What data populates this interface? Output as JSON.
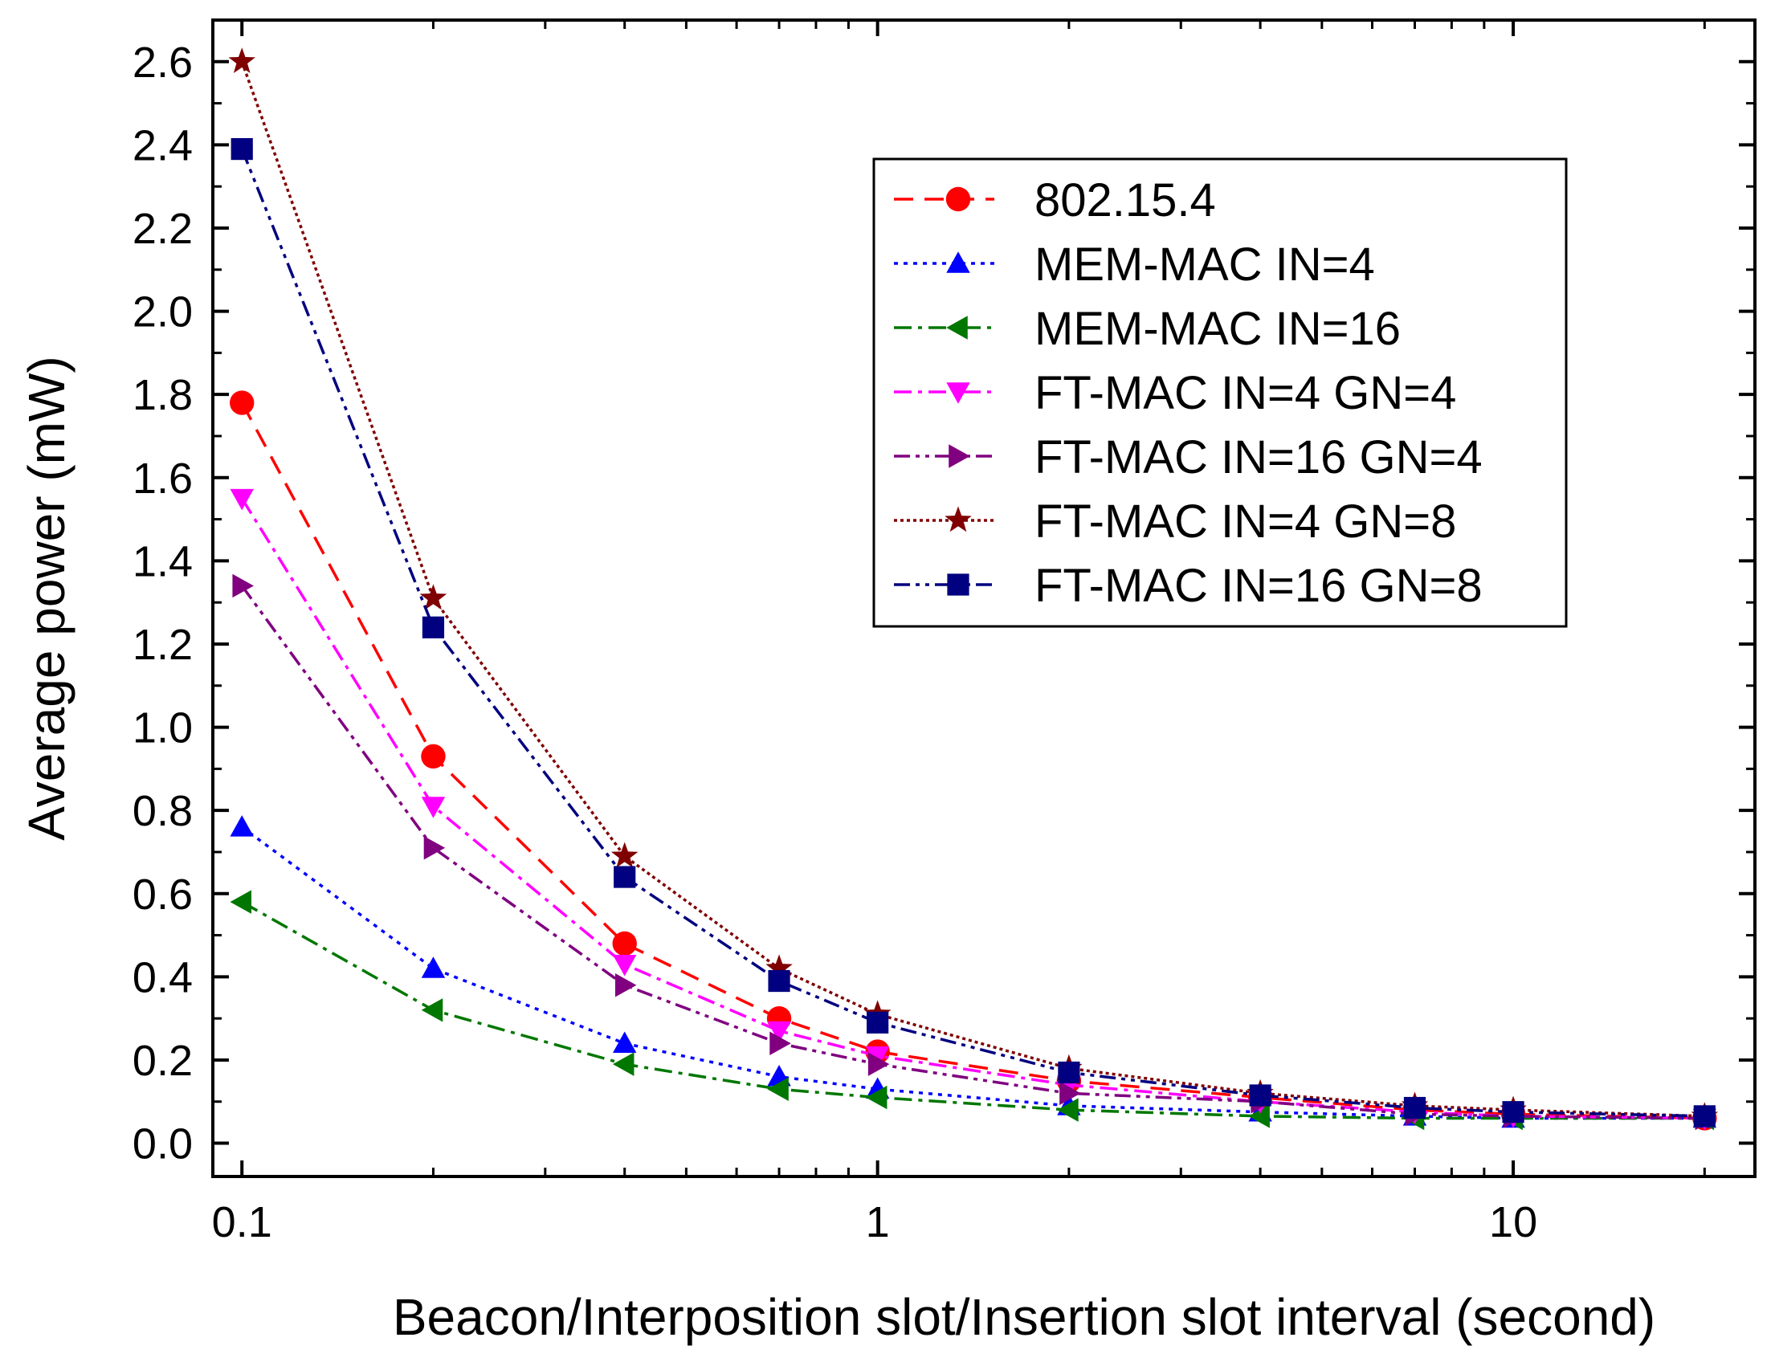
{
  "chart_data": {
    "type": "line",
    "title": "",
    "xlabel": "Beacon/Interposition slot/Insertion slot interval (second)",
    "ylabel": "Average power (mW)",
    "xscale": "log",
    "xlim": [
      0.09,
      24
    ],
    "ylim": [
      -0.08,
      2.7
    ],
    "x": [
      0.1,
      0.2,
      0.4,
      0.7,
      1,
      2,
      4,
      7,
      10,
      20
    ],
    "x_ticks": [
      {
        "value": 0.1,
        "label": "0.1"
      },
      {
        "value": 1,
        "label": "1"
      },
      {
        "value": 10,
        "label": "10"
      }
    ],
    "y_ticks": [
      {
        "value": 0.0,
        "label": "0.0"
      },
      {
        "value": 0.2,
        "label": "0.2"
      },
      {
        "value": 0.4,
        "label": "0.4"
      },
      {
        "value": 0.6,
        "label": "0.6"
      },
      {
        "value": 0.8,
        "label": "0.8"
      },
      {
        "value": 1.0,
        "label": "1.0"
      },
      {
        "value": 1.2,
        "label": "1.2"
      },
      {
        "value": 1.4,
        "label": "1.4"
      },
      {
        "value": 1.6,
        "label": "1.6"
      },
      {
        "value": 1.8,
        "label": "1.8"
      },
      {
        "value": 2.0,
        "label": "2.0"
      },
      {
        "value": 2.2,
        "label": "2.2"
      },
      {
        "value": 2.4,
        "label": "2.4"
      },
      {
        "value": 2.6,
        "label": "2.6"
      }
    ],
    "grid": false,
    "legend_position": "top-right",
    "series": [
      {
        "name": "802.15.4",
        "color": "#ff0000",
        "marker": "circle",
        "dash": "dashed",
        "values": [
          1.78,
          0.93,
          0.48,
          0.3,
          0.22,
          0.15,
          0.11,
          0.08,
          0.07,
          0.06
        ]
      },
      {
        "name": "MEM-MAC IN=4",
        "color": "#0000ff",
        "marker": "triangle-up",
        "dash": "dotted",
        "values": [
          0.76,
          0.42,
          0.24,
          0.16,
          0.13,
          0.09,
          0.075,
          0.065,
          0.06,
          0.06
        ]
      },
      {
        "name": "MEM-MAC IN=16",
        "color": "#007700",
        "marker": "triangle-left",
        "dash": "dash-dot",
        "values": [
          0.58,
          0.32,
          0.19,
          0.13,
          0.11,
          0.08,
          0.065,
          0.06,
          0.06,
          0.06
        ]
      },
      {
        "name": "FT-MAC IN=4 GN=4",
        "color": "#ff00ff",
        "marker": "triangle-down",
        "dash": "dash-dot",
        "values": [
          1.55,
          0.81,
          0.43,
          0.27,
          0.21,
          0.14,
          0.1,
          0.075,
          0.065,
          0.06
        ]
      },
      {
        "name": "FT-MAC IN=16 GN=4",
        "color": "#800080",
        "marker": "triangle-right",
        "dash": "dash-dot-dot",
        "values": [
          1.34,
          0.71,
          0.38,
          0.24,
          0.19,
          0.12,
          0.1,
          0.07,
          0.065,
          0.06
        ]
      },
      {
        "name": "FT-MAC IN=4 GN=8",
        "color": "#800000",
        "marker": "star",
        "dash": "short-dot",
        "values": [
          2.6,
          1.31,
          0.69,
          0.42,
          0.31,
          0.18,
          0.12,
          0.09,
          0.08,
          0.065
        ]
      },
      {
        "name": "FT-MAC IN=16 GN=8",
        "color": "#000080",
        "marker": "square",
        "dash": "dash-dot-dot",
        "values": [
          2.39,
          1.24,
          0.64,
          0.39,
          0.29,
          0.17,
          0.115,
          0.085,
          0.075,
          0.065
        ]
      }
    ]
  }
}
